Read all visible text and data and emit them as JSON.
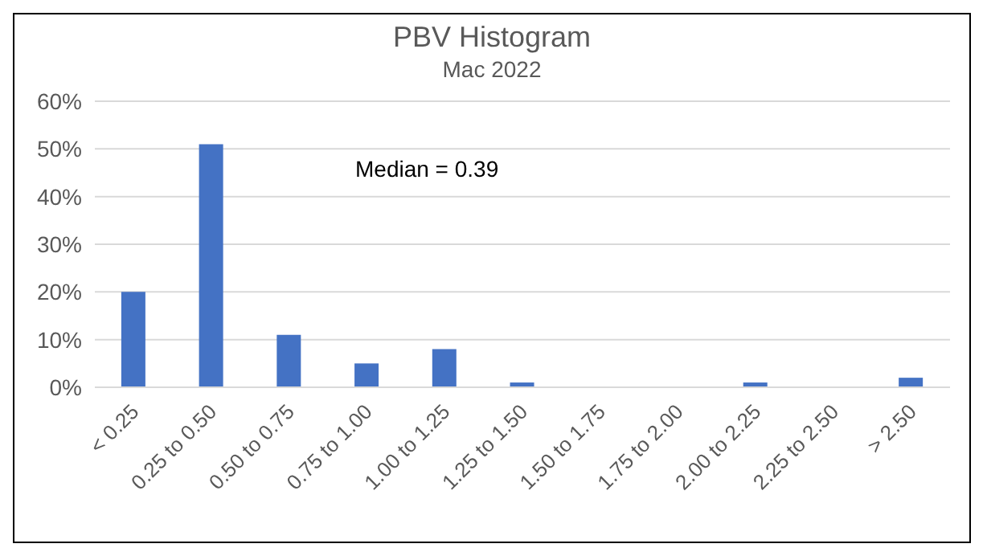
{
  "chart_data": {
    "type": "bar",
    "title": "PBV Histogram",
    "subtitle": "Mac 2022",
    "categories": [
      "< 0.25",
      "0.25 to 0.50",
      "0.50 to 0.75",
      "0.75 to 1.00",
      "1.00 to 1.25",
      "1.25 to 1.50",
      "1.50 to 1.75",
      "1.75 to 2.00",
      "2.00 to 2.25",
      "2.25 to 2.50",
      "> 2.50"
    ],
    "values": [
      20,
      51,
      11,
      5,
      8,
      1,
      0,
      0,
      1,
      0,
      2
    ],
    "color": "#4472c4",
    "ylim": [
      0,
      60
    ],
    "yticks": [
      {
        "value": 0,
        "label": "0%"
      },
      {
        "value": 10,
        "label": "10%"
      },
      {
        "value": 20,
        "label": "20%"
      },
      {
        "value": 30,
        "label": "30%"
      },
      {
        "value": 40,
        "label": "40%"
      },
      {
        "value": 50,
        "label": "50%"
      },
      {
        "value": 60,
        "label": "60%"
      }
    ],
    "grid": "y",
    "legend": false,
    "annotations": [
      "Median = 0.39"
    ]
  }
}
